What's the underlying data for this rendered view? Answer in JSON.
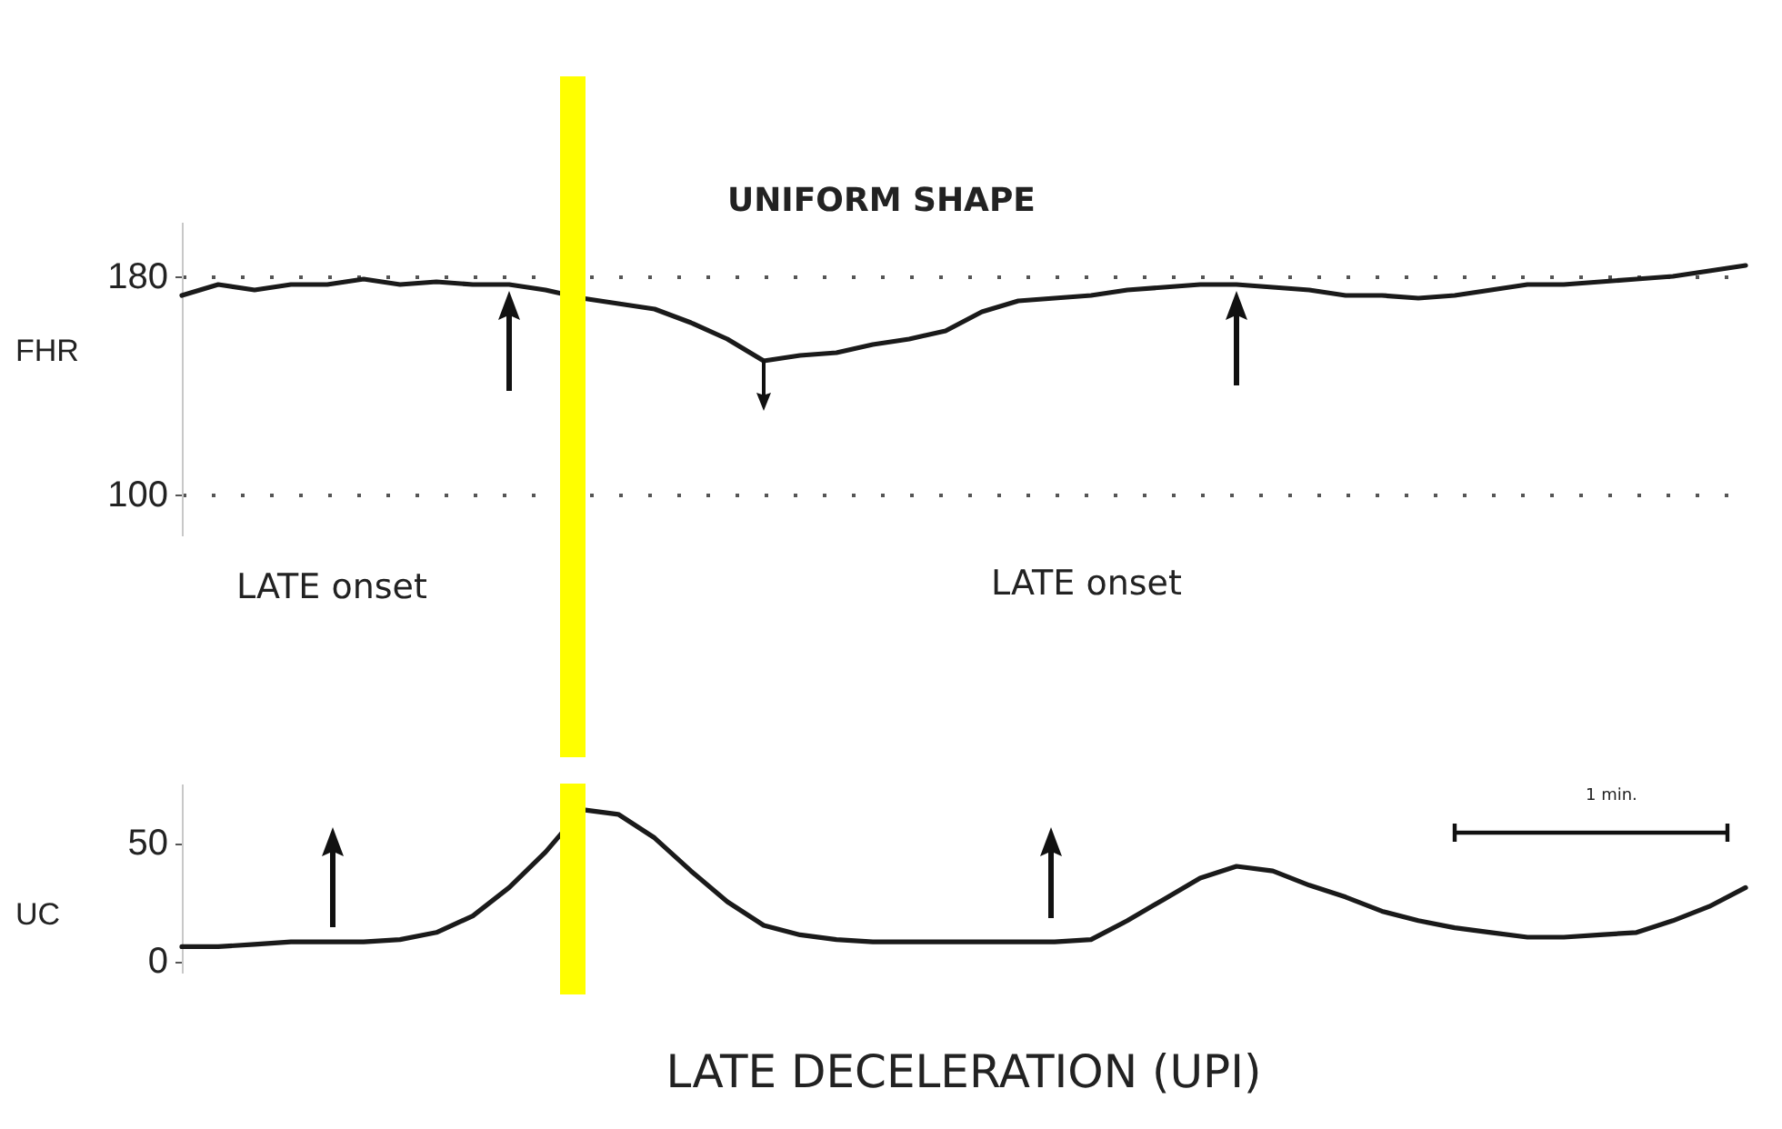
{
  "chart_data": [
    {
      "type": "line",
      "ylabel": "FHR",
      "categories": [
        null,
        null,
        null,
        null,
        null,
        null,
        null,
        null,
        null,
        null,
        null,
        null,
        null,
        null,
        null,
        null,
        null,
        null,
        null,
        null,
        null,
        null,
        null,
        null,
        null,
        null,
        null,
        null,
        null,
        null,
        null,
        null,
        null,
        null,
        null,
        null,
        null,
        null,
        null,
        null,
        null,
        null,
        null,
        null
      ],
      "series": [
        {
          "color": "#1a1a1a",
          "values": [
            173,
            177,
            175,
            177,
            177,
            179,
            177,
            178,
            177,
            177,
            175,
            172,
            170,
            168,
            163,
            157,
            149,
            151,
            152,
            155,
            157,
            160,
            167,
            171,
            172,
            173,
            175,
            176,
            177,
            177,
            176,
            175,
            173,
            173,
            172,
            173,
            175,
            177,
            177,
            178,
            179,
            180,
            182,
            184
          ]
        }
      ],
      "ylim": [
        85,
        200
      ],
      "yticks": [
        100,
        180
      ],
      "grid": "y",
      "annotations": [
        "UNIFORM SHAPE",
        "LATE onset",
        "LATE onset"
      ]
    },
    {
      "type": "line",
      "title": "LATE DECELERATION (UPI)",
      "ylabel": "UC",
      "categories": [
        null,
        null,
        null,
        null,
        null,
        null,
        null,
        null,
        null,
        null,
        null,
        null,
        null,
        null,
        null,
        null,
        null,
        null,
        null,
        null,
        null,
        null,
        null,
        null,
        null,
        null,
        null,
        null,
        null,
        null,
        null,
        null,
        null,
        null,
        null,
        null,
        null,
        null,
        null,
        null,
        null,
        null,
        null,
        null
      ],
      "series": [
        {
          "color": "#1a1a1a",
          "values": [
            6,
            6,
            7,
            8,
            8,
            8,
            9,
            12,
            19,
            31,
            46,
            64,
            62,
            52,
            38,
            25,
            15,
            11,
            9,
            8,
            8,
            8,
            8,
            8,
            8,
            9,
            17,
            26,
            35,
            40,
            38,
            32,
            27,
            21,
            17,
            14,
            12,
            10,
            10,
            11,
            12,
            17,
            23,
            31
          ]
        }
      ],
      "ylim": [
        -5,
        75
      ],
      "yticks": [
        0,
        50
      ],
      "annotations": [
        "1 min."
      ]
    }
  ]
}
